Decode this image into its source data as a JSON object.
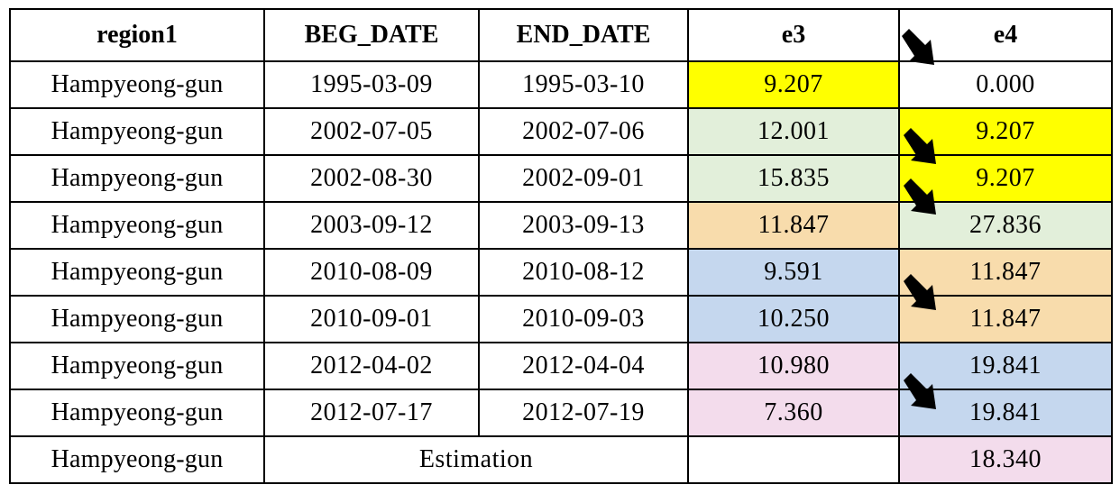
{
  "header": {
    "region": "region1",
    "beg": "BEG_DATE",
    "end": "END_DATE",
    "e3": "e3",
    "e4": "e4"
  },
  "rows": [
    {
      "region": "Hampyeong-gun",
      "beg": "1995-03-09",
      "end": "1995-03-10",
      "e3": "9.207",
      "e4": "0.000"
    },
    {
      "region": "Hampyeong-gun",
      "beg": "2002-07-05",
      "end": "2002-07-06",
      "e3": "12.001",
      "e4": "9.207"
    },
    {
      "region": "Hampyeong-gun",
      "beg": "2002-08-30",
      "end": "2002-09-01",
      "e3": "15.835",
      "e4": "9.207"
    },
    {
      "region": "Hampyeong-gun",
      "beg": "2003-09-12",
      "end": "2003-09-13",
      "e3": "11.847",
      "e4": "27.836"
    },
    {
      "region": "Hampyeong-gun",
      "beg": "2010-08-09",
      "end": "2010-08-12",
      "e3": "9.591",
      "e4": "11.847"
    },
    {
      "region": "Hampyeong-gun",
      "beg": "2010-09-01",
      "end": "2010-09-03",
      "e3": "10.250",
      "e4": "11.847"
    },
    {
      "region": "Hampyeong-gun",
      "beg": "2012-04-02",
      "end": "2012-04-04",
      "e3": "10.980",
      "e4": "19.841"
    },
    {
      "region": "Hampyeong-gun",
      "beg": "2012-07-17",
      "end": "2012-07-19",
      "e3": "7.360",
      "e4": "19.841"
    }
  ],
  "estimation_row": {
    "region": "Hampyeong-gun",
    "label": "Estimation",
    "e3": "",
    "e4": "18.340"
  },
  "colors": {
    "yellow": "#ffff00",
    "green": "#e2efda",
    "orange": "#f8dcac",
    "blue": "#c5d7ee",
    "pink": "#f3dcec"
  },
  "icons": [
    "arrow-down-right-icon"
  ]
}
